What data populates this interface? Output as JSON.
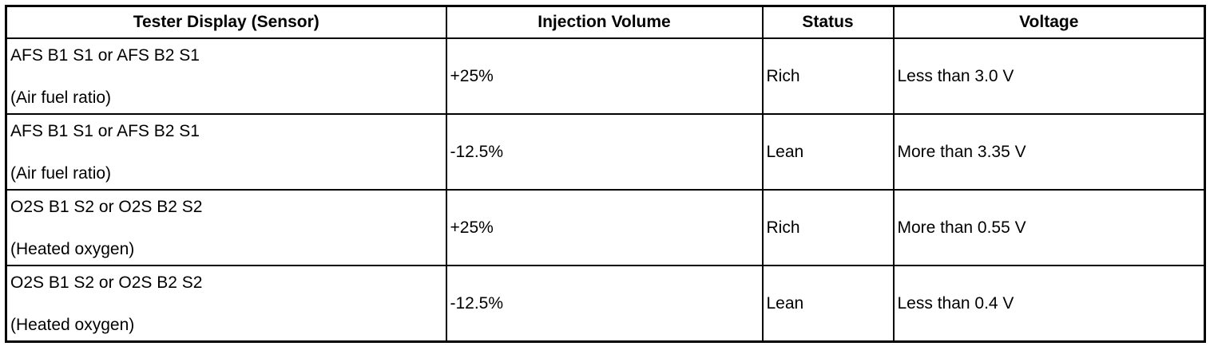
{
  "table": {
    "headers": [
      "Tester Display (Sensor)",
      "Injection Volume",
      "Status",
      "Voltage"
    ],
    "rows": [
      {
        "sensor": "AFS B1 S1 or AFS B2 S1",
        "sensor_type": "(Air fuel ratio)",
        "injection_volume": "+25%",
        "status": "Rich",
        "voltage": "Less than 3.0 V"
      },
      {
        "sensor": "AFS B1 S1 or AFS B2 S1",
        "sensor_type": "(Air fuel ratio)",
        "injection_volume": "-12.5%",
        "status": "Lean",
        "voltage": "More than 3.35 V"
      },
      {
        "sensor": "O2S B1 S2 or O2S B2 S2",
        "sensor_type": "(Heated oxygen)",
        "injection_volume": "+25%",
        "status": "Rich",
        "voltage": "More than 0.55 V"
      },
      {
        "sensor": "O2S B1 S2 or O2S B2 S2",
        "sensor_type": "(Heated oxygen)",
        "injection_volume": "-12.5%",
        "status": "Lean",
        "voltage": "Less than 0.4 V"
      }
    ]
  }
}
